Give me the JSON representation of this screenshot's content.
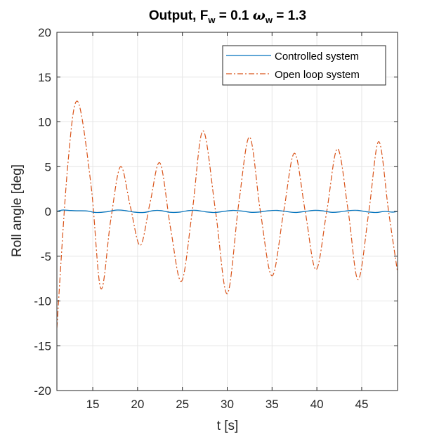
{
  "chart_data": {
    "type": "line",
    "title_parts": {
      "lead": "Output, F",
      "fsub": "w",
      "mid": " = 0.1 ",
      "omega": "ω",
      "osub": "w",
      "tail": " = 1.3"
    },
    "xlabel": "t [s]",
    "ylabel": "Roll angle [deg]",
    "xlim": [
      11,
      49
    ],
    "ylim": [
      -20,
      20
    ],
    "xticks": [
      15,
      20,
      25,
      30,
      35,
      40,
      45
    ],
    "yticks": [
      -20,
      -15,
      -10,
      -5,
      0,
      5,
      10,
      15,
      20
    ],
    "grid": true,
    "legend_position": "top-right",
    "series": [
      {
        "name": "Controlled system",
        "color": "#0072BD",
        "style": "solid",
        "x": [
          11,
          11.6,
          12.3,
          13.2,
          14.3,
          15.3,
          16.5,
          17.6,
          18.6,
          19.6,
          20.7,
          21.8,
          22.6,
          23.6,
          24.7,
          25.7,
          26.6,
          27.6,
          28.6,
          29.6,
          30.6,
          31.6,
          32.6,
          33.5,
          34.6,
          35.6,
          36.6,
          37.6,
          38.7,
          39.6,
          40.6,
          41.6,
          42.6,
          43.6,
          44.6,
          45.6,
          46.6,
          47.6,
          48.4,
          49
        ],
        "y": [
          0.0,
          0.15,
          0.12,
          0.08,
          0.06,
          -0.12,
          -0.05,
          0.15,
          0.1,
          -0.08,
          -0.12,
          0.1,
          0.1,
          -0.1,
          -0.08,
          0.1,
          0.12,
          -0.05,
          -0.12,
          0.0,
          0.12,
          0.05,
          -0.1,
          -0.08,
          0.08,
          0.12,
          -0.02,
          -0.12,
          0.0,
          0.12,
          0.08,
          -0.1,
          -0.05,
          0.1,
          0.12,
          -0.05,
          -0.12,
          0.0,
          -0.08,
          0.0
        ]
      },
      {
        "name": "Open loop system",
        "color": "#D95319",
        "style": "dashdot",
        "x": [
          11,
          12.2,
          13.3,
          14.8,
          15.9,
          17.0,
          18.1,
          19.2,
          20.3,
          21.4,
          22.5,
          23.7,
          24.9,
          26.1,
          27.3,
          28.7,
          30.0,
          31.3,
          32.5,
          33.7,
          35.0,
          36.3,
          37.5,
          38.7,
          39.9,
          41.1,
          42.3,
          43.5,
          44.6,
          45.8,
          46.9,
          48.0,
          49
        ],
        "y": [
          -13,
          5,
          12.3,
          3,
          -8.6,
          -1,
          5.0,
          0.5,
          -3.8,
          1.0,
          5.4,
          -2.0,
          -7.8,
          0.0,
          9.0,
          0.0,
          -9.2,
          1.0,
          8.3,
          0.0,
          -7.2,
          0.0,
          6.5,
          0.0,
          -6.5,
          0.0,
          7.0,
          0.0,
          -7.6,
          0.0,
          7.8,
          0.0,
          -6.8
        ]
      }
    ]
  }
}
